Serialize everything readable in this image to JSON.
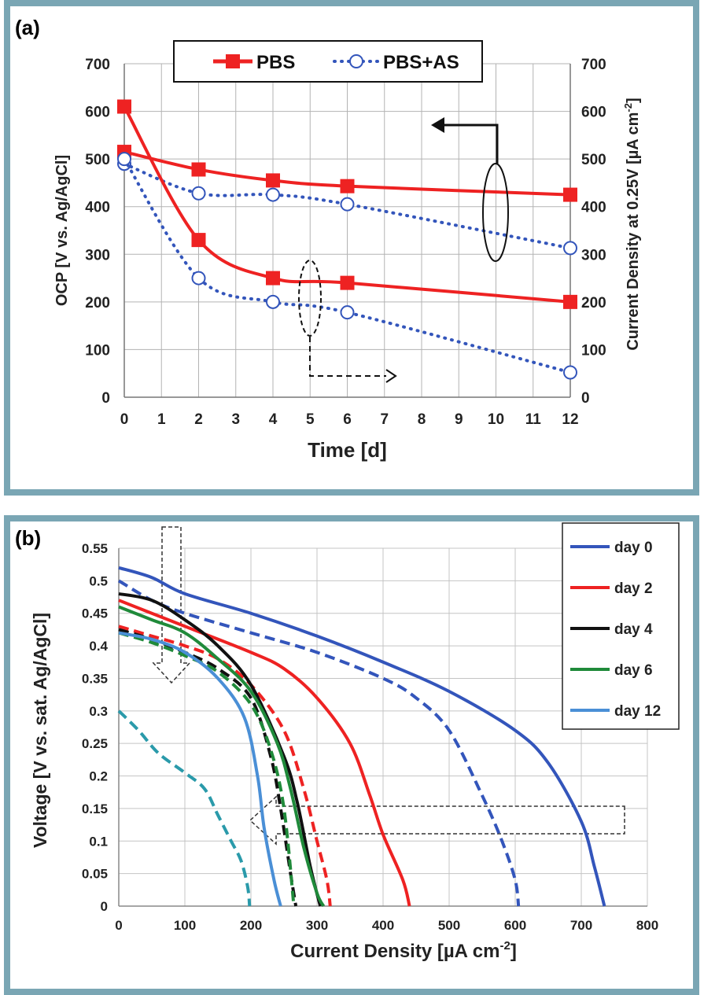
{
  "chart_data": [
    {
      "type": "line",
      "panel_label": "(a)",
      "xlabel": "Time [d]",
      "ylabel": "OCP [V vs. Ag/AgCl]",
      "y2label_main": "Current Density at 0.25V [µA cm",
      "y2label_sup": "-2",
      "y2label_end": "]",
      "xlim": [
        0,
        12
      ],
      "ylim": [
        0,
        700
      ],
      "y2lim": [
        0,
        700
      ],
      "xticks": [
        0,
        1,
        2,
        3,
        4,
        5,
        6,
        7,
        8,
        9,
        10,
        11,
        12
      ],
      "yticks": [
        0,
        100,
        200,
        300,
        400,
        500,
        600,
        700
      ],
      "grid": true,
      "legend_position": "top",
      "legend": [
        {
          "name": "PBS",
          "color": "#ee2222",
          "style": "solid-square"
        },
        {
          "name": "PBS+AS",
          "color": "#3355bb",
          "style": "dotted-circle"
        }
      ],
      "series": [
        {
          "name": "PBS",
          "axis": "left",
          "color": "#ee2222",
          "x": [
            0,
            2,
            4,
            6,
            12
          ],
          "y": [
            515,
            478,
            455,
            443,
            425
          ]
        },
        {
          "name": "PBS+AS",
          "axis": "left",
          "color": "#3355bb",
          "x": [
            0,
            2,
            4,
            6,
            12
          ],
          "y": [
            490,
            428,
            425,
            405,
            313
          ]
        },
        {
          "name": "PBS",
          "axis": "right",
          "color": "#ee2222",
          "x": [
            0,
            2,
            4,
            6,
            12
          ],
          "y": [
            610,
            330,
            250,
            240,
            200
          ]
        },
        {
          "name": "PBS+AS",
          "axis": "right",
          "color": "#3355bb",
          "x": [
            0,
            2,
            4,
            6,
            12
          ],
          "y": [
            500,
            250,
            200,
            178,
            52
          ]
        }
      ]
    },
    {
      "type": "line",
      "panel_label": "(b)",
      "xlabel_main": "Current Density [µA cm",
      "xlabel_sup": "-2",
      "xlabel_end": "]",
      "ylabel": "Voltage [V vs. sat. Ag/AgCl]",
      "xlim": [
        0,
        800
      ],
      "ylim": [
        0,
        0.55
      ],
      "xticks": [
        0,
        100,
        200,
        300,
        400,
        500,
        600,
        700,
        800
      ],
      "yticks": [
        "0",
        "0.05",
        "0.1",
        "0.15",
        "0.2",
        "0.25",
        "0.3",
        "0.35",
        "0.4",
        "0.45",
        "0.5",
        "0.55"
      ],
      "grid": true,
      "legend_position": "top-right",
      "legend": [
        {
          "name": "day 0",
          "color": "#3355bb"
        },
        {
          "name": "day 2",
          "color": "#ee2222"
        },
        {
          "name": "day 4",
          "color": "#111111"
        },
        {
          "name": "day 6",
          "color": "#1f8a3a"
        },
        {
          "name": "day 12",
          "color": "#4a8fd6"
        }
      ],
      "series": [
        {
          "name": "day 0",
          "dashed": false,
          "color": "#3355bb",
          "x": [
            0,
            50,
            100,
            200,
            300,
            400,
            500,
            600,
            650,
            700,
            720,
            735
          ],
          "y": [
            0.52,
            0.505,
            0.48,
            0.45,
            0.415,
            0.375,
            0.33,
            0.27,
            0.22,
            0.13,
            0.06,
            0.0
          ]
        },
        {
          "name": "day 0",
          "dashed": true,
          "color": "#3355bb",
          "x": [
            0,
            50,
            100,
            200,
            300,
            400,
            450,
            500,
            550,
            580,
            600,
            605
          ],
          "y": [
            0.5,
            0.47,
            0.45,
            0.42,
            0.39,
            0.35,
            0.32,
            0.27,
            0.17,
            0.1,
            0.04,
            0.0
          ]
        },
        {
          "name": "day 2",
          "dashed": false,
          "color": "#ee2222",
          "x": [
            0,
            50,
            100,
            200,
            250,
            300,
            350,
            380,
            400,
            430,
            440
          ],
          "y": [
            0.47,
            0.45,
            0.43,
            0.39,
            0.365,
            0.32,
            0.25,
            0.17,
            0.11,
            0.04,
            0.0
          ]
        },
        {
          "name": "day 2",
          "dashed": true,
          "color": "#ee2222",
          "x": [
            0,
            50,
            100,
            150,
            200,
            250,
            280,
            300,
            315,
            320
          ],
          "y": [
            0.43,
            0.415,
            0.4,
            0.38,
            0.34,
            0.27,
            0.18,
            0.1,
            0.04,
            0.0
          ]
        },
        {
          "name": "day 4",
          "dashed": false,
          "color": "#111111",
          "x": [
            0,
            50,
            100,
            150,
            200,
            250,
            270,
            290,
            305
          ],
          "y": [
            0.48,
            0.47,
            0.44,
            0.4,
            0.34,
            0.23,
            0.16,
            0.06,
            0.0
          ]
        },
        {
          "name": "day 4",
          "dashed": true,
          "color": "#111111",
          "x": [
            0,
            50,
            100,
            150,
            200,
            230,
            245,
            260,
            268
          ],
          "y": [
            0.425,
            0.41,
            0.39,
            0.365,
            0.32,
            0.23,
            0.15,
            0.05,
            0.0
          ]
        },
        {
          "name": "day 6",
          "dashed": false,
          "color": "#1f8a3a",
          "x": [
            0,
            50,
            100,
            150,
            200,
            240,
            260,
            280,
            300,
            310
          ],
          "y": [
            0.46,
            0.44,
            0.42,
            0.38,
            0.33,
            0.25,
            0.18,
            0.09,
            0.02,
            0.0
          ]
        },
        {
          "name": "day 6",
          "dashed": true,
          "color": "#1f8a3a",
          "x": [
            0,
            50,
            100,
            150,
            200,
            230,
            250,
            265
          ],
          "y": [
            0.42,
            0.405,
            0.385,
            0.36,
            0.31,
            0.24,
            0.15,
            0.0
          ]
        },
        {
          "name": "day 12",
          "dashed": false,
          "color": "#4a8fd6",
          "x": [
            0,
            50,
            100,
            150,
            190,
            210,
            220,
            235,
            245
          ],
          "y": [
            0.42,
            0.41,
            0.39,
            0.35,
            0.29,
            0.2,
            0.12,
            0.04,
            0.0
          ]
        },
        {
          "name": "day 12",
          "dashed": true,
          "color": "#2a9aaa",
          "x": [
            0,
            30,
            60,
            100,
            130,
            150,
            170,
            185,
            195,
            198
          ],
          "y": [
            0.3,
            0.27,
            0.235,
            0.205,
            0.18,
            0.14,
            0.1,
            0.07,
            0.03,
            0.0
          ]
        }
      ]
    }
  ]
}
